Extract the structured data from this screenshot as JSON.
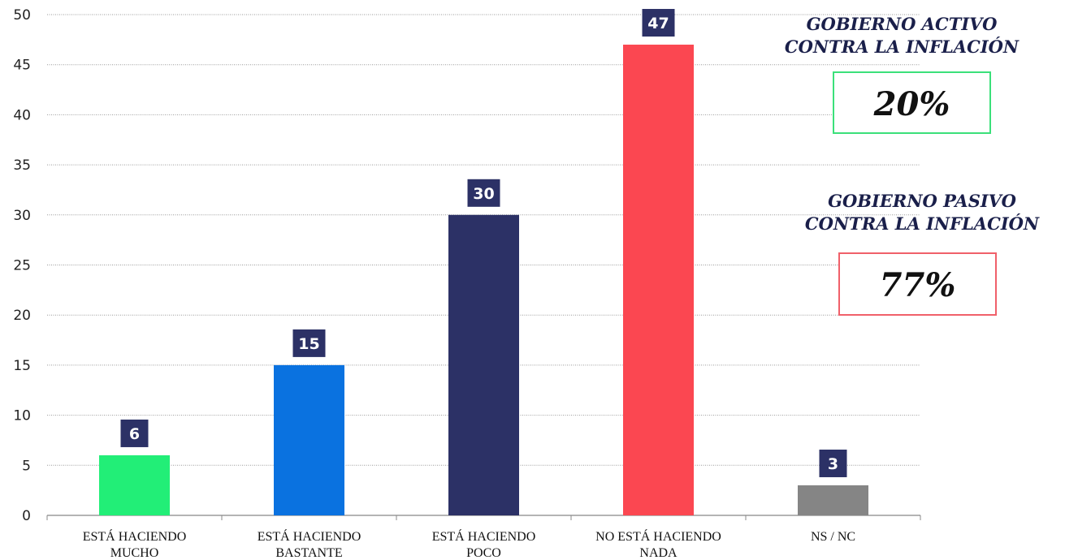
{
  "chart_data": {
    "type": "bar",
    "categories": [
      [
        "ESTÁ HACIENDO",
        "MUCHO"
      ],
      [
        "ESTÁ HACIENDO",
        "BASTANTE"
      ],
      [
        "ESTÁ HACIENDO",
        "POCO"
      ],
      [
        "NO ESTÁ HACIENDO",
        "NADA"
      ],
      [
        "NS / NC"
      ]
    ],
    "values": [
      6,
      15,
      30,
      47,
      3
    ],
    "colors": [
      "#22ee77",
      "#0a72e0",
      "#2c3166",
      "#fb4751",
      "#858585"
    ],
    "data_label_color": "#2c3166",
    "ylim": [
      0,
      50
    ],
    "yticks": [
      0,
      5,
      10,
      15,
      20,
      25,
      30,
      35,
      40,
      45,
      50
    ],
    "grid": true,
    "legend": "none",
    "title": "",
    "xlabel": "",
    "ylabel": ""
  },
  "annotations": {
    "active": {
      "title_line1": "GOBIERNO ACTIVO",
      "title_line2": "CONTRA LA INFLACIÓN",
      "value": "20%",
      "border_color": "#3be07a"
    },
    "passive": {
      "title_line1": "GOBIERNO PASIVO",
      "title_line2": "CONTRA LA INFLACIÓN",
      "value": "77%",
      "border_color": "#f0606a"
    }
  }
}
